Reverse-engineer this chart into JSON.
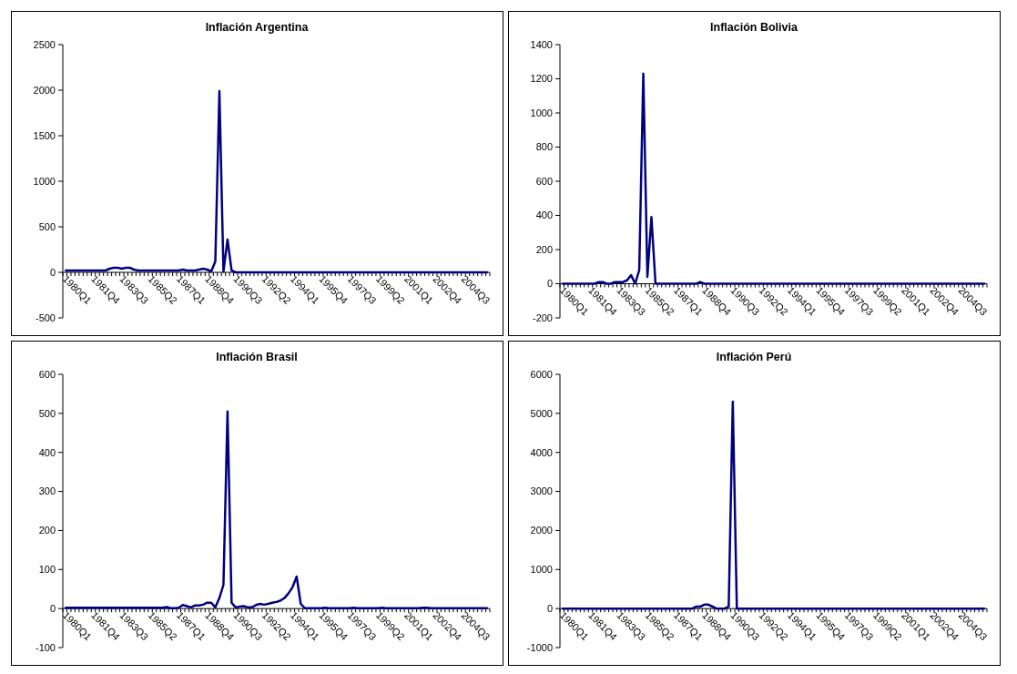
{
  "chart_data": [
    {
      "type": "line",
      "title": "Inflación Argentina",
      "categories": [
        "1980Q1",
        null,
        null,
        null,
        null,
        null,
        null,
        "1981Q4",
        null,
        null,
        null,
        null,
        null,
        null,
        "1983Q3",
        null,
        null,
        null,
        null,
        null,
        null,
        "1985Q2",
        null,
        null,
        null,
        null,
        null,
        null,
        "1987Q1",
        null,
        null,
        null,
        null,
        null,
        null,
        "1988Q4",
        null,
        null,
        null,
        null,
        null,
        null,
        "1990Q3",
        null,
        null,
        null,
        null,
        null,
        null,
        "1992Q2",
        null,
        null,
        null,
        null,
        null,
        null,
        "1994Q1",
        null,
        null,
        null,
        null,
        null,
        null,
        "1995Q4",
        null,
        null,
        null,
        null,
        null,
        null,
        "1997Q3",
        null,
        null,
        null,
        null,
        null,
        null,
        "1999Q2",
        null,
        null,
        null,
        null,
        null,
        null,
        "2001Q1",
        null,
        null,
        null,
        null,
        null,
        null,
        "2002Q4",
        null,
        null,
        null,
        null,
        null,
        null,
        "2004Q3",
        null,
        null,
        null,
        null,
        null,
        null
      ],
      "series": [
        {
          "color": "#000080",
          "values": [
            20,
            20,
            20,
            20,
            20,
            20,
            20,
            20,
            20,
            20,
            20,
            40,
            50,
            50,
            40,
            50,
            50,
            30,
            20,
            20,
            20,
            20,
            20,
            20,
            20,
            20,
            20,
            20,
            20,
            30,
            20,
            20,
            20,
            30,
            40,
            30,
            10,
            120,
            1990,
            10,
            360,
            20,
            0,
            0,
            0,
            0,
            0,
            0,
            0,
            0,
            0,
            0,
            0,
            0,
            0,
            0,
            0,
            0,
            0,
            0,
            0,
            0,
            0,
            0,
            0,
            0,
            0,
            0,
            0,
            0,
            0,
            0,
            0,
            0,
            0,
            0,
            0,
            0,
            0,
            0,
            0,
            0,
            0,
            0,
            0,
            0,
            0,
            0,
            0,
            0,
            0,
            0,
            0,
            0,
            0,
            0,
            0,
            0,
            0,
            0,
            0,
            0,
            0,
            0,
            0
          ]
        }
      ],
      "ylim": [
        -500,
        2500
      ],
      "yticks": [
        -500,
        0,
        500,
        1000,
        1500,
        2000,
        2500
      ],
      "grid": false,
      "line_style": "solid"
    },
    {
      "type": "line",
      "title": "Inflación Bolivia",
      "categories": [
        "1980Q1",
        null,
        null,
        null,
        null,
        null,
        null,
        "1981Q4",
        null,
        null,
        null,
        null,
        null,
        null,
        "1983Q3",
        null,
        null,
        null,
        null,
        null,
        null,
        "1985Q2",
        null,
        null,
        null,
        null,
        null,
        null,
        "1987Q1",
        null,
        null,
        null,
        null,
        null,
        null,
        "1988Q4",
        null,
        null,
        null,
        null,
        null,
        null,
        "1990Q3",
        null,
        null,
        null,
        null,
        null,
        null,
        "1992Q2",
        null,
        null,
        null,
        null,
        null,
        null,
        "1994Q1",
        null,
        null,
        null,
        null,
        null,
        null,
        "1995Q4",
        null,
        null,
        null,
        null,
        null,
        null,
        "1997Q3",
        null,
        null,
        null,
        null,
        null,
        null,
        "1999Q2",
        null,
        null,
        null,
        null,
        null,
        null,
        "2001Q1",
        null,
        null,
        null,
        null,
        null,
        null,
        "2002Q4",
        null,
        null,
        null,
        null,
        null,
        null,
        "2004Q3",
        null,
        null,
        null,
        null,
        null,
        null
      ],
      "series": [
        {
          "color": "#000080",
          "values": [
            0,
            0,
            0,
            0,
            0,
            0,
            0,
            0,
            0,
            10,
            10,
            0,
            0,
            10,
            10,
            10,
            20,
            50,
            0,
            80,
            1230,
            40,
            390,
            0,
            0,
            0,
            0,
            0,
            0,
            0,
            0,
            0,
            0,
            0,
            10,
            0,
            0,
            0,
            0,
            0,
            0,
            0,
            0,
            0,
            0,
            0,
            0,
            0,
            0,
            0,
            0,
            0,
            0,
            0,
            0,
            0,
            0,
            0,
            0,
            0,
            0,
            0,
            0,
            0,
            0,
            0,
            0,
            0,
            0,
            0,
            0,
            0,
            0,
            0,
            0,
            0,
            0,
            0,
            0,
            0,
            0,
            0,
            0,
            0,
            0,
            0,
            0,
            0,
            0,
            0,
            0,
            0,
            0,
            0,
            0,
            0,
            0,
            0,
            0,
            0,
            0,
            0,
            0,
            0,
            0
          ]
        }
      ],
      "ylim": [
        -200,
        1400
      ],
      "yticks": [
        -200,
        0,
        200,
        400,
        600,
        800,
        1000,
        1200,
        1400
      ],
      "grid": false,
      "line_style": "solid"
    },
    {
      "type": "line",
      "title": "Inflación Brasil",
      "categories": [
        "1980Q1",
        null,
        null,
        null,
        null,
        null,
        null,
        "1981Q4",
        null,
        null,
        null,
        null,
        null,
        null,
        "1983Q3",
        null,
        null,
        null,
        null,
        null,
        null,
        "1985Q2",
        null,
        null,
        null,
        null,
        null,
        null,
        "1987Q1",
        null,
        null,
        null,
        null,
        null,
        null,
        "1988Q4",
        null,
        null,
        null,
        null,
        null,
        null,
        "1990Q3",
        null,
        null,
        null,
        null,
        null,
        null,
        "1992Q2",
        null,
        null,
        null,
        null,
        null,
        null,
        "1994Q1",
        null,
        null,
        null,
        null,
        null,
        null,
        "1995Q4",
        null,
        null,
        null,
        null,
        null,
        null,
        "1997Q3",
        null,
        null,
        null,
        null,
        null,
        null,
        "1999Q2",
        null,
        null,
        null,
        null,
        null,
        null,
        "2001Q1",
        null,
        null,
        null,
        null,
        null,
        null,
        "2002Q4",
        null,
        null,
        null,
        null,
        null,
        null,
        "2004Q3",
        null,
        null,
        null,
        null,
        null,
        null
      ],
      "series": [
        {
          "color": "#000080",
          "values": [
            2,
            2,
            2,
            2,
            2,
            2,
            2,
            2,
            2,
            2,
            2,
            2,
            2,
            2,
            2,
            2,
            2,
            2,
            2,
            2,
            2,
            2,
            2,
            2,
            2,
            4,
            1,
            1,
            2,
            9,
            6,
            3,
            8,
            8,
            10,
            15,
            15,
            3,
            27,
            61,
            505,
            15,
            3,
            5,
            6,
            3,
            3,
            9,
            12,
            10,
            12,
            15,
            17,
            20,
            27,
            39,
            55,
            82,
            12,
            1,
            1,
            1,
            1,
            1,
            2,
            1,
            1,
            1,
            1,
            1,
            1,
            2,
            1,
            1,
            1,
            1,
            1,
            1,
            2,
            1,
            1,
            1,
            1,
            1,
            1,
            1,
            1,
            1,
            2,
            2,
            1,
            1,
            1,
            1,
            1,
            1,
            1,
            1,
            1,
            1,
            1,
            1,
            1,
            1,
            1
          ]
        }
      ],
      "ylim": [
        -100,
        600
      ],
      "yticks": [
        -100,
        0,
        100,
        200,
        300,
        400,
        500,
        600
      ],
      "grid": false,
      "line_style": "solid"
    },
    {
      "type": "line",
      "title": "Inflación Perú",
      "categories": [
        "1980Q1",
        null,
        null,
        null,
        null,
        null,
        null,
        "1981Q4",
        null,
        null,
        null,
        null,
        null,
        null,
        "1983Q3",
        null,
        null,
        null,
        null,
        null,
        null,
        "1985Q2",
        null,
        null,
        null,
        null,
        null,
        null,
        "1987Q1",
        null,
        null,
        null,
        null,
        null,
        null,
        "1988Q4",
        null,
        null,
        null,
        null,
        null,
        null,
        "1990Q3",
        null,
        null,
        null,
        null,
        null,
        null,
        "1992Q2",
        null,
        null,
        null,
        null,
        null,
        null,
        "1994Q1",
        null,
        null,
        null,
        null,
        null,
        null,
        "1995Q4",
        null,
        null,
        null,
        null,
        null,
        null,
        "1997Q3",
        null,
        null,
        null,
        null,
        null,
        null,
        "1999Q2",
        null,
        null,
        null,
        null,
        null,
        null,
        "2001Q1",
        null,
        null,
        null,
        null,
        null,
        null,
        "2002Q4",
        null,
        null,
        null,
        null,
        null,
        null,
        "2004Q3",
        null,
        null,
        null,
        null,
        null,
        null
      ],
      "series": [
        {
          "color": "#000080",
          "values": [
            0,
            0,
            0,
            0,
            0,
            0,
            0,
            0,
            0,
            0,
            0,
            0,
            0,
            0,
            0,
            0,
            0,
            0,
            0,
            0,
            0,
            0,
            0,
            0,
            0,
            0,
            0,
            0,
            0,
            0,
            0,
            0,
            0,
            50,
            50,
            100,
            100,
            50,
            0,
            0,
            0,
            50,
            5300,
            0,
            0,
            0,
            0,
            0,
            0,
            0,
            0,
            0,
            0,
            0,
            0,
            0,
            0,
            0,
            0,
            0,
            0,
            0,
            0,
            0,
            0,
            0,
            0,
            0,
            0,
            0,
            0,
            0,
            0,
            0,
            0,
            0,
            0,
            0,
            0,
            0,
            0,
            0,
            0,
            0,
            0,
            0,
            0,
            0,
            0,
            0,
            0,
            0,
            0,
            0,
            0,
            0,
            0,
            0,
            0,
            0,
            0,
            0,
            0,
            0,
            0
          ]
        }
      ],
      "ylim": [
        -1000,
        6000
      ],
      "yticks": [
        -1000,
        0,
        1000,
        2000,
        3000,
        4000,
        5000,
        6000
      ],
      "grid": false,
      "line_style": "solid"
    }
  ]
}
